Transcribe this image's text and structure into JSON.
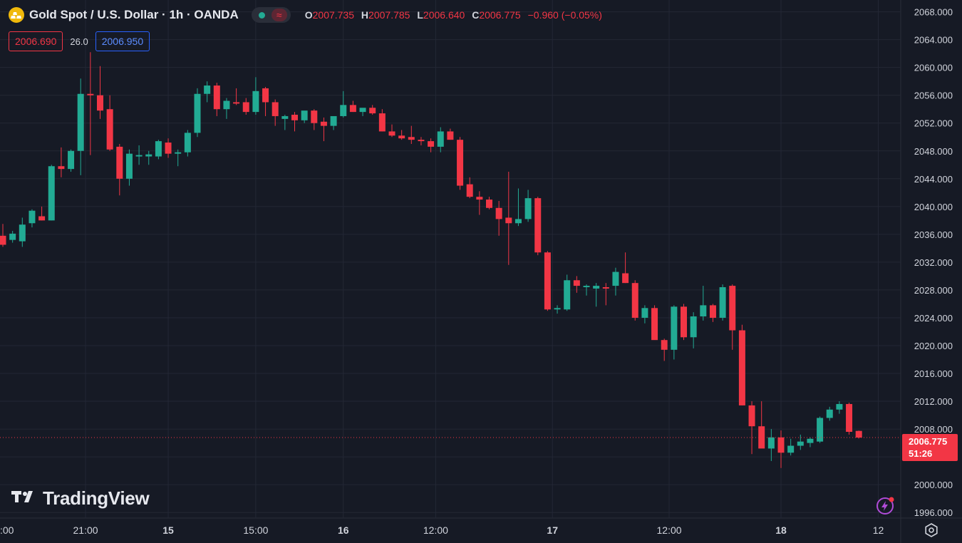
{
  "header": {
    "title": "Gold Spot / U.S. Dollar · 1h · OANDA",
    "ohlc": [
      {
        "key": "O",
        "value": "2007.735"
      },
      {
        "key": "H",
        "value": "2007.785"
      },
      {
        "key": "L",
        "value": "2006.640"
      },
      {
        "key": "C",
        "value": "2006.775"
      }
    ],
    "change": "−0.960 (−0.05%)"
  },
  "quote": {
    "bid": "2006.690",
    "spread": "26.0",
    "ask": "2006.950"
  },
  "price_tag": {
    "price": "2006.775",
    "countdown": "51:26"
  },
  "brand": {
    "name": "TradingView"
  },
  "colors": {
    "up": "#22ab94",
    "down": "#f23645",
    "background": "#161a25",
    "grid": "#232735"
  },
  "chart_data": {
    "type": "candlestick",
    "title": "Gold Spot / U.S. Dollar · 1h · OANDA",
    "ylim": [
      1995.2,
      2069.7
    ],
    "y_ticks": [
      "1996.000",
      "2000.000",
      "2004.000",
      "2008.000",
      "2012.000",
      "2016.000",
      "2020.000",
      "2024.000",
      "2028.000",
      "2032.000",
      "2036.000",
      "2040.000",
      "2044.000",
      "2048.000",
      "2052.000",
      "2056.000",
      "2060.000",
      "2064.000",
      "2068.000"
    ],
    "x_ticks": [
      {
        "label": ":00",
        "bar": -0.5
      },
      {
        "label": "21:00",
        "bar": 8.5
      },
      {
        "label": "15",
        "bar": 17,
        "bold": true
      },
      {
        "label": "15:00",
        "bar": 26
      },
      {
        "label": "16",
        "bar": 35,
        "bold": true
      },
      {
        "label": "12:00",
        "bar": 44.5
      },
      {
        "label": "17",
        "bar": 56.5,
        "bold": true
      },
      {
        "label": "12:00",
        "bar": 68.5
      },
      {
        "label": "18",
        "bar": 80,
        "bold": true
      },
      {
        "label": "12",
        "bar": 90
      }
    ],
    "grid": true,
    "last_price": 2006.775,
    "candles": [
      [
        2035.8,
        2037.5,
        2034.2,
        2034.5
      ],
      [
        2035.2,
        2036.5,
        2034.8,
        2036.1
      ],
      [
        2035.0,
        2038.4,
        2034.2,
        2037.4
      ],
      [
        2037.6,
        2039.6,
        2037.0,
        2039.4
      ],
      [
        2038.6,
        2040.0,
        2038.0,
        2038.0
      ],
      [
        2038.0,
        2046.0,
        2038.0,
        2045.8
      ],
      [
        2045.8,
        2048.5,
        2044.2,
        2045.4
      ],
      [
        2045.4,
        2048.2,
        2045.0,
        2048.0
      ],
      [
        2048.0,
        2058.4,
        2044.5,
        2056.2
      ],
      [
        2056.2,
        2062.2,
        2047.4,
        2056.0
      ],
      [
        2056.0,
        2060.2,
        2052.6,
        2053.8
      ],
      [
        2054.0,
        2056.0,
        2048.0,
        2048.2
      ],
      [
        2048.6,
        2049.0,
        2041.6,
        2044.0
      ],
      [
        2044.0,
        2048.2,
        2043.0,
        2047.6
      ],
      [
        2047.2,
        2048.8,
        2046.0,
        2047.4
      ],
      [
        2047.2,
        2048.0,
        2046.0,
        2047.5
      ],
      [
        2047.2,
        2049.6,
        2046.8,
        2049.4
      ],
      [
        2049.2,
        2049.8,
        2047.0,
        2047.6
      ],
      [
        2047.6,
        2048.2,
        2045.8,
        2047.8
      ],
      [
        2047.8,
        2051.0,
        2047.2,
        2050.6
      ],
      [
        2050.6,
        2057.0,
        2050.0,
        2056.2
      ],
      [
        2056.2,
        2058.0,
        2055.0,
        2057.4
      ],
      [
        2057.4,
        2057.8,
        2053.0,
        2054.0
      ],
      [
        2054.0,
        2055.6,
        2052.6,
        2055.2
      ],
      [
        2055.0,
        2057.0,
        2054.6,
        2054.8
      ],
      [
        2055.0,
        2055.6,
        2053.2,
        2053.6
      ],
      [
        2053.6,
        2058.6,
        2053.2,
        2056.6
      ],
      [
        2057.0,
        2057.2,
        2053.0,
        2055.0
      ],
      [
        2055.0,
        2055.4,
        2051.6,
        2053.0
      ],
      [
        2052.6,
        2053.2,
        2051.0,
        2053.0
      ],
      [
        2053.2,
        2053.6,
        2050.8,
        2052.4
      ],
      [
        2052.4,
        2053.6,
        2052.0,
        2053.8
      ],
      [
        2053.8,
        2054.0,
        2051.0,
        2052.0
      ],
      [
        2052.2,
        2052.8,
        2049.4,
        2051.6
      ],
      [
        2051.6,
        2052.6,
        2051.0,
        2053.0
      ],
      [
        2053.0,
        2056.6,
        2052.8,
        2054.6
      ],
      [
        2054.6,
        2055.2,
        2053.6,
        2053.6
      ],
      [
        2053.6,
        2054.0,
        2053.0,
        2054.2
      ],
      [
        2054.2,
        2054.6,
        2053.2,
        2053.4
      ],
      [
        2053.4,
        2054.0,
        2050.8,
        2050.8
      ],
      [
        2050.8,
        2051.8,
        2050.0,
        2050.2
      ],
      [
        2050.2,
        2051.0,
        2049.6,
        2049.8
      ],
      [
        2050.0,
        2051.6,
        2049.0,
        2049.6
      ],
      [
        2049.6,
        2050.0,
        2048.8,
        2049.4
      ],
      [
        2049.4,
        2049.8,
        2047.8,
        2048.6
      ],
      [
        2048.6,
        2051.4,
        2047.8,
        2050.8
      ],
      [
        2050.8,
        2051.2,
        2049.6,
        2049.6
      ],
      [
        2049.6,
        2050.0,
        2042.4,
        2043.0
      ],
      [
        2043.2,
        2044.2,
        2041.2,
        2041.4
      ],
      [
        2041.4,
        2042.2,
        2038.8,
        2041.0
      ],
      [
        2041.0,
        2041.4,
        2039.6,
        2039.8
      ],
      [
        2039.8,
        2040.8,
        2035.8,
        2038.2
      ],
      [
        2038.4,
        2045.0,
        2031.6,
        2037.6
      ],
      [
        2037.6,
        2042.6,
        2037.2,
        2038.2
      ],
      [
        2038.2,
        2042.4,
        2037.8,
        2041.2
      ],
      [
        2041.2,
        2041.4,
        2033.0,
        2033.4
      ],
      [
        2033.4,
        2033.6,
        2025.0,
        2025.2
      ],
      [
        2025.2,
        2025.8,
        2024.6,
        2025.4
      ],
      [
        2025.2,
        2030.2,
        2025.0,
        2029.4
      ],
      [
        2029.4,
        2030.0,
        2027.6,
        2028.6
      ],
      [
        2028.4,
        2028.8,
        2027.2,
        2028.6
      ],
      [
        2028.2,
        2029.0,
        2025.6,
        2028.6
      ],
      [
        2028.4,
        2029.0,
        2025.8,
        2028.2
      ],
      [
        2028.6,
        2031.2,
        2027.2,
        2030.6
      ],
      [
        2030.4,
        2033.4,
        2029.0,
        2029.0
      ],
      [
        2029.0,
        2029.4,
        2023.6,
        2024.0
      ],
      [
        2024.0,
        2025.8,
        2023.2,
        2025.4
      ],
      [
        2025.4,
        2025.8,
        2021.2,
        2020.8
      ],
      [
        2020.8,
        2021.0,
        2017.8,
        2019.4
      ],
      [
        2019.4,
        2025.8,
        2018.0,
        2025.6
      ],
      [
        2025.6,
        2026.0,
        2020.8,
        2021.2
      ],
      [
        2021.2,
        2024.8,
        2019.6,
        2024.2
      ],
      [
        2024.2,
        2028.6,
        2023.6,
        2025.8
      ],
      [
        2025.8,
        2026.0,
        2023.4,
        2024.0
      ],
      [
        2024.0,
        2028.8,
        2023.6,
        2028.4
      ],
      [
        2028.6,
        2028.8,
        2019.4,
        2022.2
      ],
      [
        2022.2,
        2023.0,
        2011.4,
        2011.4
      ],
      [
        2011.4,
        2012.0,
        2004.4,
        2008.4
      ],
      [
        2008.4,
        2012.0,
        2005.8,
        2005.2
      ],
      [
        2005.2,
        2008.0,
        2003.4,
        2006.8
      ],
      [
        2006.8,
        2007.8,
        2002.4,
        2004.6
      ],
      [
        2004.6,
        2006.6,
        2004.2,
        2005.6
      ],
      [
        2005.6,
        2007.2,
        2005.0,
        2006.2
      ],
      [
        2006.0,
        2006.8,
        2005.4,
        2006.6
      ],
      [
        2006.2,
        2009.8,
        2006.0,
        2009.6
      ],
      [
        2009.6,
        2011.2,
        2009.2,
        2010.8
      ],
      [
        2010.8,
        2012.0,
        2010.2,
        2011.6
      ],
      [
        2011.6,
        2011.8,
        2007.2,
        2007.6
      ],
      [
        2007.735,
        2007.785,
        2006.64,
        2006.775
      ]
    ]
  }
}
